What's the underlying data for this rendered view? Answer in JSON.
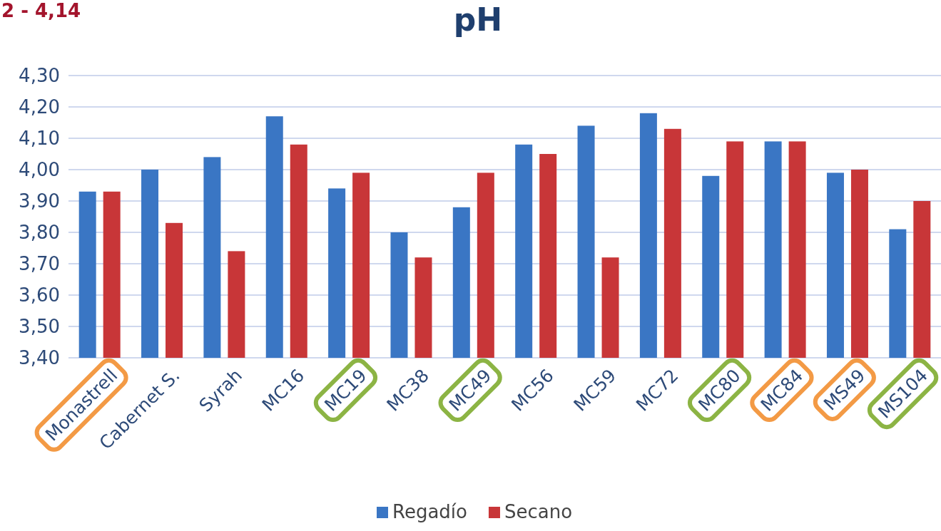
{
  "chart_data": {
    "type": "bar",
    "title": "pH",
    "annotations": [
      "2 - 4,14"
    ],
    "categories": [
      "Monastrell",
      "Cabernet S.",
      "Syrah",
      "MC16",
      "MC19",
      "MC38",
      "MC49",
      "MC56",
      "MC59",
      "MC72",
      "MC80",
      "MC84",
      "MS49",
      "MS104"
    ],
    "series": [
      {
        "name": "Regadío",
        "color": "#3a76c4",
        "values": [
          3.93,
          4.0,
          4.04,
          4.17,
          3.94,
          3.8,
          3.88,
          4.08,
          4.14,
          4.18,
          3.98,
          4.09,
          3.99,
          3.81
        ]
      },
      {
        "name": "Secano",
        "color": "#c83638",
        "values": [
          3.93,
          3.83,
          3.74,
          4.08,
          3.99,
          3.72,
          3.99,
          4.05,
          3.72,
          4.13,
          4.09,
          4.09,
          4.0,
          3.9
        ]
      }
    ],
    "ylim": [
      3.4,
      4.3
    ],
    "yticks": [
      {
        "value": 3.4,
        "label": "3,40"
      },
      {
        "value": 3.5,
        "label": "3,50"
      },
      {
        "value": 3.6,
        "label": "3,60"
      },
      {
        "value": 3.7,
        "label": "3,70"
      },
      {
        "value": 3.8,
        "label": "3,80"
      },
      {
        "value": 3.9,
        "label": "3,90"
      },
      {
        "value": 4.0,
        "label": "4,00"
      },
      {
        "value": 4.1,
        "label": "4,10"
      },
      {
        "value": 4.2,
        "label": "4,20"
      },
      {
        "value": 4.3,
        "label": "4,30"
      }
    ],
    "grid": "y",
    "legend": "bottom"
  }
}
